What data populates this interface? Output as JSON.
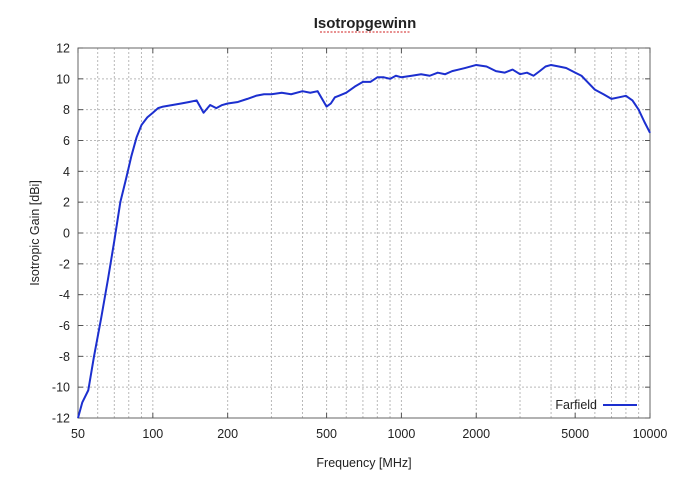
{
  "chart_data": {
    "type": "line",
    "title": "Isotropgewinn",
    "xlabel": "Frequency [MHz]",
    "ylabel": "Isotropic Gain [dBi]",
    "x_scale": "log",
    "xlim": [
      50,
      10000
    ],
    "ylim": [
      -12,
      12
    ],
    "x_ticks": [
      50,
      100,
      200,
      500,
      1000,
      2000,
      5000,
      10000
    ],
    "x_tick_labels": [
      "50",
      "100",
      "200",
      "500",
      "1000",
      "2000",
      "5000",
      "10000"
    ],
    "y_ticks": [
      -12,
      -10,
      -8,
      -6,
      -4,
      -2,
      0,
      2,
      4,
      6,
      8,
      10,
      12
    ],
    "y_tick_labels": [
      "-12",
      "-10",
      "-8",
      "-6",
      "-4",
      "-2",
      "0",
      "2",
      "4",
      "6",
      "8",
      "10",
      "12"
    ],
    "grid": true,
    "legend_position": "bottom-right",
    "series": [
      {
        "name": "Farfield",
        "color": "#1c2fcf",
        "x": [
          50,
          52,
          55,
          58,
          62,
          66,
          70,
          74,
          78,
          82,
          86,
          90,
          95,
          100,
          105,
          110,
          120,
          130,
          140,
          150,
          160,
          170,
          180,
          190,
          200,
          220,
          240,
          260,
          280,
          300,
          330,
          360,
          400,
          430,
          460,
          500,
          520,
          540,
          560,
          600,
          650,
          700,
          750,
          800,
          850,
          900,
          950,
          1000,
          1100,
          1200,
          1300,
          1400,
          1500,
          1600,
          1700,
          1800,
          2000,
          2200,
          2400,
          2600,
          2800,
          3000,
          3200,
          3400,
          3600,
          3800,
          4000,
          4300,
          4600,
          5000,
          5300,
          5600,
          6000,
          6500,
          7000,
          7500,
          8000,
          8500,
          9000,
          9500,
          10000
        ],
        "y": [
          -12,
          -11.0,
          -10.2,
          -8.0,
          -5.5,
          -3.0,
          -0.5,
          2.0,
          3.5,
          5.0,
          6.2,
          7.0,
          7.5,
          7.8,
          8.1,
          8.2,
          8.3,
          8.4,
          8.5,
          8.6,
          7.8,
          8.3,
          8.1,
          8.3,
          8.4,
          8.5,
          8.7,
          8.9,
          9.0,
          9.0,
          9.1,
          9.0,
          9.2,
          9.1,
          9.2,
          8.2,
          8.4,
          8.8,
          8.9,
          9.1,
          9.5,
          9.8,
          9.8,
          10.1,
          10.1,
          10.0,
          10.2,
          10.1,
          10.2,
          10.3,
          10.2,
          10.4,
          10.3,
          10.5,
          10.6,
          10.7,
          10.9,
          10.8,
          10.5,
          10.4,
          10.6,
          10.3,
          10.4,
          10.2,
          10.5,
          10.8,
          10.9,
          10.8,
          10.7,
          10.4,
          10.2,
          9.8,
          9.3,
          9.0,
          8.7,
          8.8,
          8.9,
          8.6,
          8.0,
          7.2,
          6.5
        ]
      }
    ]
  }
}
